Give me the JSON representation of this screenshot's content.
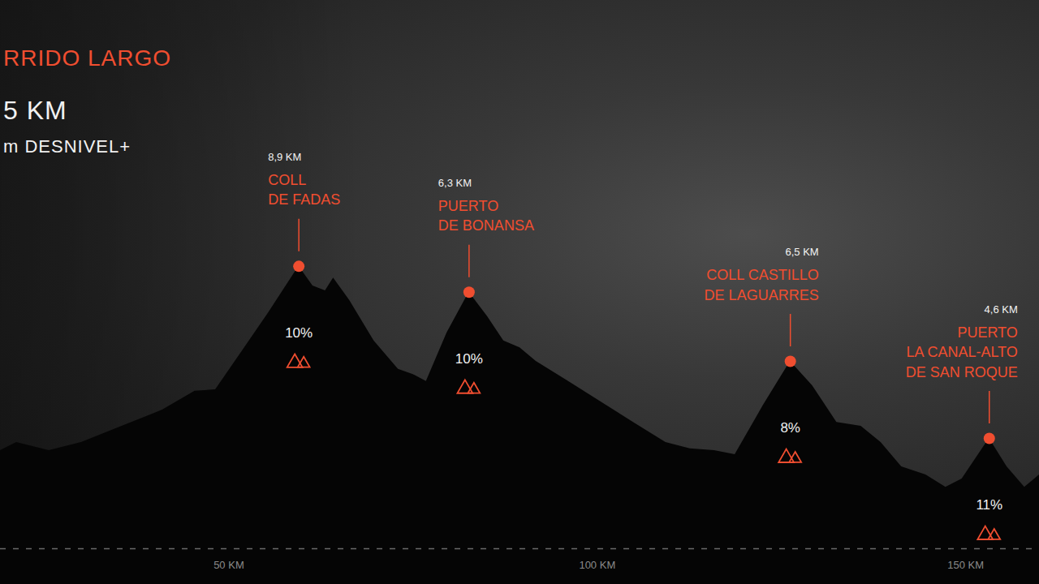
{
  "chart_data": {
    "type": "area",
    "title": "RRIDO LARGO",
    "subtitle": [
      "5 KM",
      "m DESNIVEL+"
    ],
    "x": [
      19.0,
      21.2,
      25.6,
      30.0,
      35.5,
      41.0,
      45.4,
      48.2,
      52.0,
      55.4,
      59.5,
      61.4,
      63.1,
      64.2,
      66.4,
      69.7,
      73.0,
      75.2,
      76.8,
      79.6,
      82.6,
      85.1,
      87.3,
      89.5,
      91.7,
      96.1,
      100.5,
      104.9,
      109.3,
      112.6,
      115.9,
      118.7,
      122.5,
      126.2,
      129.2,
      132.5,
      135.8,
      138.5,
      141.3,
      144.6,
      147.3,
      149.5,
      153.2,
      155.6,
      158.0,
      160.0
    ],
    "values": [
      322,
      349,
      322,
      349,
      402,
      455,
      517,
      522,
      655,
      775,
      927,
      863,
      847,
      889,
      815,
      682,
      589,
      570,
      549,
      708,
      842,
      762,
      682,
      660,
      615,
      549,
      482,
      415,
      349,
      328,
      322,
      309,
      469,
      615,
      535,
      415,
      402,
      349,
      269,
      242,
      202,
      229,
      362,
      269,
      202,
      242
    ],
    "color": "#050505",
    "xlim": [
      19,
      160
    ],
    "xticks": [
      {
        "value": 50,
        "label": "50 KM"
      },
      {
        "value": 100,
        "label": "100 KM"
      },
      {
        "value": 150,
        "label": "150 KM"
      }
    ],
    "ylim": [
      0,
      1800
    ],
    "tick_labels": "x",
    "grid": false,
    "annotations": [
      {
        "x": 59.5,
        "y": 927,
        "length": 8.9,
        "length_label": "8,9 KM",
        "name": [
          "COLL",
          "DE FADAS"
        ],
        "gradient": 10,
        "gradient_label": "10%",
        "color": "#f04e30"
      },
      {
        "x": 82.6,
        "y": 842,
        "length": 6.3,
        "length_label": "6,3 KM",
        "name": [
          "PUERTO",
          "DE BONANSA"
        ],
        "gradient": 10,
        "gradient_label": "10%",
        "color": "#f04e30"
      },
      {
        "x": 126.2,
        "y": 615,
        "length": 6.5,
        "length_label": "6,5 KM",
        "name": [
          "COLL CASTILLO",
          "DE LAGUARRES"
        ],
        "gradient": 8,
        "gradient_label": "8%",
        "color": "#f04e30"
      },
      {
        "x": 153.2,
        "y": 362,
        "length": 4.6,
        "length_label": "4,6 KM",
        "name": [
          "PUERTO",
          "LA CANAL-ALTO",
          "DE SAN ROQUE"
        ],
        "gradient": 11,
        "gradient_label": "11%",
        "color": "#f04e30"
      }
    ]
  }
}
